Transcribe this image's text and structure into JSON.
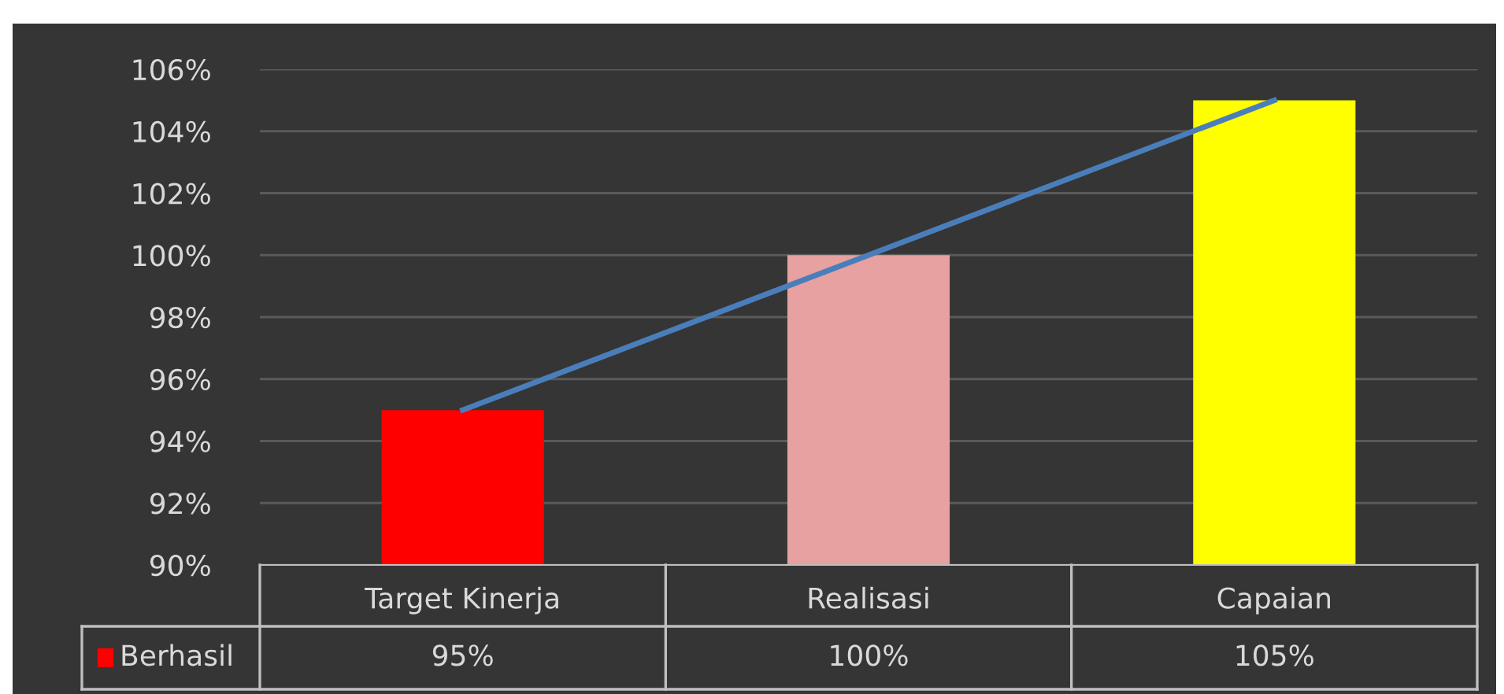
{
  "chart_data": {
    "type": "bar",
    "categories": [
      "Target Kinerja",
      "Realisasi",
      "Capaian"
    ],
    "series": [
      {
        "name": "Berhasil",
        "colors": [
          "#ff0000",
          "#e6a1a0",
          "#ffff00"
        ],
        "values": [
          95,
          100,
          105
        ],
        "value_labels": [
          "95%",
          "100%",
          "105%"
        ]
      },
      {
        "type": "line",
        "color": "#4a7ebb",
        "values": [
          95,
          100,
          105
        ]
      }
    ],
    "ylim": [
      90,
      106
    ],
    "yticks": [
      {
        "value": 90,
        "label": "90%"
      },
      {
        "value": 92,
        "label": "92%"
      },
      {
        "value": 94,
        "label": "94%"
      },
      {
        "value": 96,
        "label": "96%"
      },
      {
        "value": 98,
        "label": "98%"
      },
      {
        "value": 100,
        "label": "100%"
      },
      {
        "value": 102,
        "label": "102%"
      },
      {
        "value": 104,
        "label": "104%"
      },
      {
        "value": 106,
        "label": "106%"
      }
    ],
    "grid": "y",
    "legend": "bottom left",
    "marker": "none",
    "line_style": "solid"
  }
}
